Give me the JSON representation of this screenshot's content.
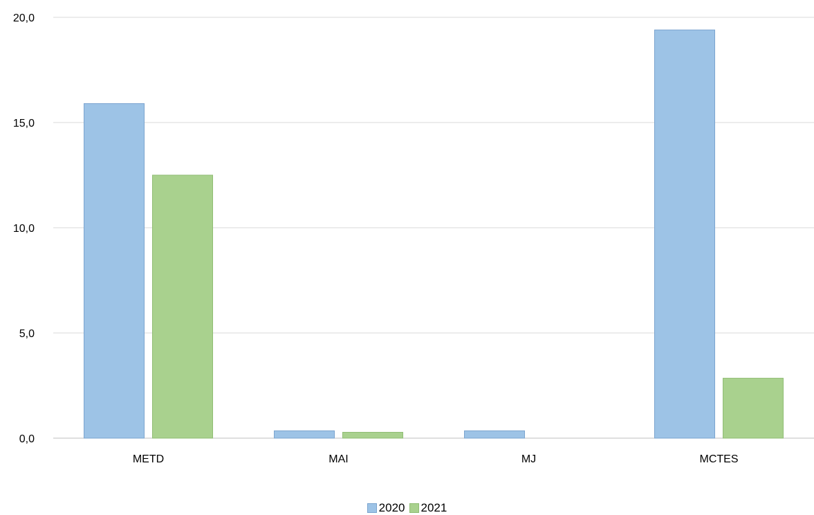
{
  "chart_data": {
    "type": "bar",
    "categories": [
      "METD",
      "MAI",
      "MJ",
      "MCTES"
    ],
    "series": [
      {
        "name": "2020",
        "values": [
          15.9,
          0.35,
          0.35,
          19.4
        ],
        "color": "#9dc3e6",
        "stroke": "#7ba4cf"
      },
      {
        "name": "2021",
        "values": [
          12.5,
          0.28,
          0.0,
          2.85
        ],
        "color": "#a9d18e",
        "stroke": "#90bd74"
      }
    ],
    "ylim": [
      0,
      20
    ],
    "yticks": [
      0,
      5,
      10,
      15,
      20
    ],
    "ytick_labels": [
      "0,0",
      "5,0",
      "10,0",
      "15,0",
      "20,0"
    ],
    "grid": true,
    "gridline_color": "#d9d9d9",
    "legend_position": "bottom-center"
  }
}
